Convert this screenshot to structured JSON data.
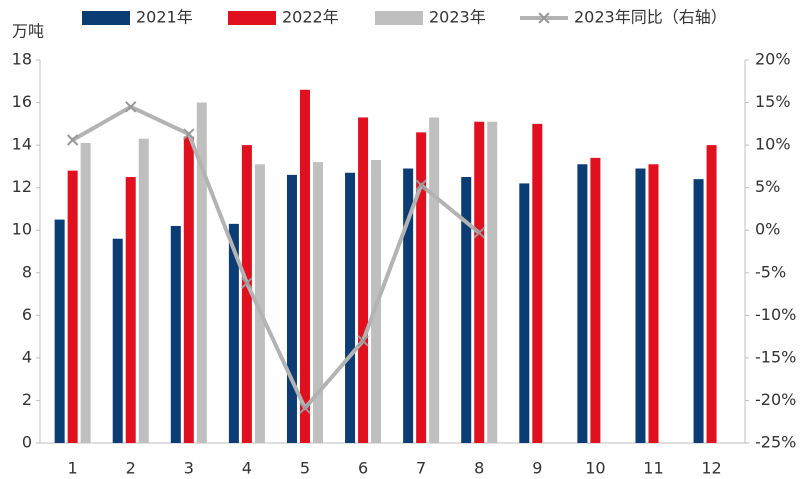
{
  "chart_data": {
    "type": "bar_line",
    "y_unit_label": "万吨",
    "categories": [
      "1",
      "2",
      "3",
      "4",
      "5",
      "6",
      "7",
      "8",
      "9",
      "10",
      "11",
      "12"
    ],
    "series": [
      {
        "name": "2021年",
        "color": "#0b3c73",
        "type": "bar",
        "values": [
          10.5,
          9.6,
          10.2,
          10.3,
          12.6,
          12.7,
          12.9,
          12.5,
          12.2,
          13.1,
          12.9,
          12.4
        ]
      },
      {
        "name": "2022年",
        "color": "#e0101e",
        "type": "bar",
        "values": [
          12.8,
          12.5,
          14.4,
          14.0,
          16.6,
          15.3,
          14.6,
          15.1,
          15.0,
          13.4,
          13.1,
          14.0
        ]
      },
      {
        "name": "2023年",
        "color": "#bfbfbf",
        "type": "bar",
        "values": [
          14.1,
          14.3,
          16.0,
          13.1,
          13.2,
          13.3,
          15.3,
          15.1,
          null,
          null,
          null,
          null
        ]
      },
      {
        "name": "2023年同比（右轴）",
        "color": "#b3b3b3",
        "type": "line",
        "axis": "y2",
        "values": [
          10.6,
          14.5,
          11.3,
          -6.2,
          -20.9,
          -13.0,
          5.3,
          -0.3,
          null,
          null,
          null,
          null
        ]
      }
    ],
    "ylim": [
      0,
      18
    ],
    "yticks": [
      0,
      2,
      4,
      6,
      8,
      10,
      12,
      14,
      16,
      18
    ],
    "y2lim": [
      -25,
      20
    ],
    "y2ticks": [
      {
        "value": -25,
        "label": "-25%"
      },
      {
        "value": -20,
        "label": "-20%"
      },
      {
        "value": -15,
        "label": "-15%"
      },
      {
        "value": -10,
        "label": "-10%"
      },
      {
        "value": -5,
        "label": "-5%"
      },
      {
        "value": 0,
        "label": "0%"
      },
      {
        "value": 5,
        "label": "5%"
      },
      {
        "value": 10,
        "label": "10%"
      },
      {
        "value": 15,
        "label": "15%"
      },
      {
        "value": 20,
        "label": "20%"
      }
    ],
    "grid": false
  }
}
